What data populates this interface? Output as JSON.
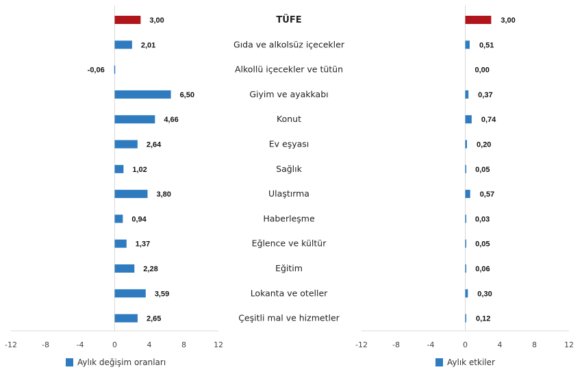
{
  "chart_data": [
    {
      "type": "bar",
      "orientation": "horizontal",
      "categories": [
        "TÜFE",
        "Gıda ve alkolsüz içecekler",
        "Alkollü içecekler ve tütün",
        "Giyim ve ayakkabı",
        "Konut",
        "Ev eşyası",
        "Sağlık",
        "Ulaştırma",
        "Haberleşme",
        "Eğlence ve kültür",
        "Eğitim",
        "Lokanta ve oteller",
        "Çeşitli mal ve hizmetler"
      ],
      "series": [
        {
          "name": "Aylık değişim oranları",
          "values": [
            3.0,
            2.01,
            -0.06,
            6.5,
            4.66,
            2.64,
            1.02,
            3.8,
            0.94,
            1.37,
            2.28,
            3.59,
            2.65
          ]
        }
      ],
      "value_labels": [
        "3,00",
        "2,01",
        "-0,06",
        "6,50",
        "4,66",
        "2,64",
        "1,02",
        "3,80",
        "0,94",
        "1,37",
        "2,28",
        "3,59",
        "2,65"
      ],
      "xlim": [
        -12,
        12
      ],
      "xticks": [
        "-12",
        "-8",
        "-4",
        "0",
        "4",
        "8",
        "12"
      ],
      "grid": false,
      "legend": "bottom",
      "colors": {
        "highlight": "#B0151B",
        "bar": "#2E7BBF"
      }
    },
    {
      "type": "bar",
      "orientation": "horizontal",
      "categories": [
        "TÜFE",
        "Gıda ve alkolsüz içecekler",
        "Alkollü içecekler ve tütün",
        "Giyim ve ayakkabı",
        "Konut",
        "Ev eşyası",
        "Sağlık",
        "Ulaştırma",
        "Haberleşme",
        "Eğlence ve kültür",
        "Eğitim",
        "Lokanta ve oteller",
        "Çeşitli mal ve hizmetler"
      ],
      "series": [
        {
          "name": "Aylık etkiler",
          "values": [
            3.0,
            0.51,
            0.0,
            0.37,
            0.74,
            0.2,
            0.05,
            0.57,
            0.03,
            0.05,
            0.06,
            0.3,
            0.12
          ]
        }
      ],
      "value_labels": [
        "3,00",
        "0,51",
        "0,00",
        "0,37",
        "0,74",
        "0,20",
        "0,05",
        "0,57",
        "0,03",
        "0,05",
        "0,06",
        "0,30",
        "0,12"
      ],
      "xlim": [
        -12,
        12
      ],
      "xticks": [
        "-12",
        "-8",
        "-4",
        "0",
        "4",
        "8",
        "12"
      ],
      "grid": false,
      "legend": "bottom",
      "colors": {
        "highlight": "#B0151B",
        "bar": "#2E7BBF"
      }
    }
  ]
}
